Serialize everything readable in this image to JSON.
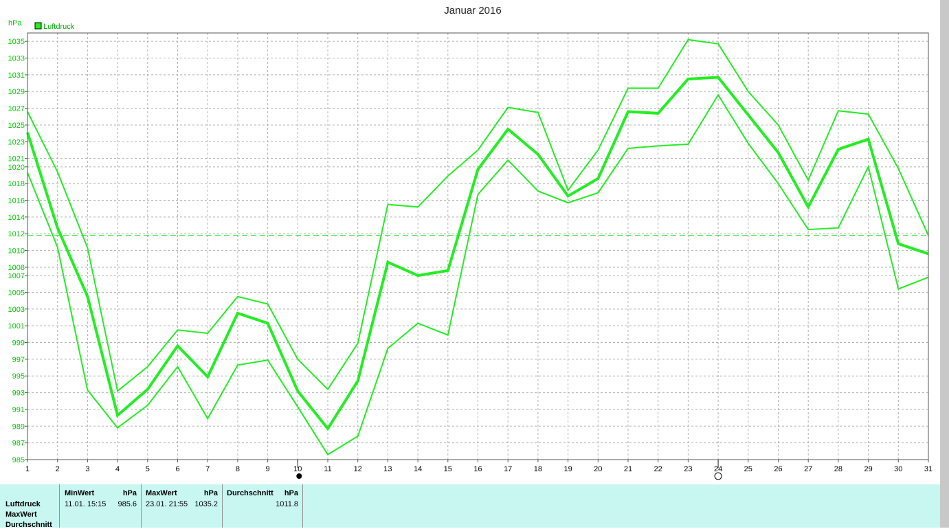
{
  "chart_data": {
    "type": "line",
    "title": "Januar 2016",
    "ylabel": "hPa",
    "legend": "Luftdruck",
    "ylim": [
      985,
      1036
    ],
    "x": [
      1,
      2,
      3,
      4,
      5,
      6,
      7,
      8,
      9,
      10,
      11,
      12,
      13,
      14,
      15,
      16,
      17,
      18,
      19,
      20,
      21,
      22,
      23,
      24,
      25,
      26,
      27,
      28,
      29,
      30,
      31
    ],
    "y_ticks": [
      985,
      987,
      989,
      991,
      993,
      995,
      997,
      999,
      1001,
      1003,
      1005,
      1007,
      1008,
      1010,
      1012,
      1014,
      1016,
      1018,
      1020,
      1021,
      1023,
      1025,
      1027,
      1029,
      1031,
      1033,
      1035
    ],
    "series": [
      {
        "values": [
          1026.6,
          1019.4,
          1010.3,
          993.2,
          996.1,
          1000.5,
          1000.1,
          1004.5,
          1003.6,
          997.0,
          993.4,
          998.9,
          1015.5,
          1015.2,
          1018.9,
          1022.0,
          1027.1,
          1026.5,
          1017.2,
          1022.0,
          1029.4,
          1029.4,
          1035.2,
          1034.7,
          1029.0,
          1025.0,
          1018.4,
          1026.7,
          1026.3,
          1019.8,
          1011.8
        ],
        "line_width": 2
      },
      {
        "values": [
          1024.1,
          1012.7,
          1004.5,
          990.3,
          993.4,
          998.6,
          994.9,
          1002.5,
          1001.3,
          993.2,
          988.7,
          994.4,
          1008.6,
          1007.0,
          1007.6,
          1019.7,
          1024.5,
          1021.5,
          1016.5,
          1018.6,
          1026.6,
          1026.4,
          1030.5,
          1030.7,
          1026.2,
          1021.7,
          1015.2,
          1022.1,
          1023.3,
          1010.8,
          1009.6
        ],
        "line_width": 4
      },
      {
        "values": [
          1019.3,
          1010.4,
          993.3,
          988.8,
          991.5,
          996.1,
          989.9,
          996.3,
          996.9,
          991.3,
          985.6,
          987.8,
          998.3,
          1001.3,
          999.9,
          1016.7,
          1020.8,
          1017.1,
          1015.7,
          1016.9,
          1022.2,
          1022.5,
          1022.7,
          1028.6,
          1022.8,
          1018.0,
          1012.5,
          1012.7,
          1020.0,
          1005.4,
          1006.8
        ],
        "line_width": 2
      }
    ],
    "average": 1011.8,
    "grid": true,
    "colors": {
      "line": "#22ee22",
      "grid": "#b0b0b0",
      "axis": "#555555"
    }
  },
  "markers": [
    {
      "day": 10,
      "symbol": "filled-circle"
    },
    {
      "day": 24,
      "symbol": "open-circle"
    }
  ],
  "summary": {
    "row_labels": [
      "Luftdruck",
      "MaxWert",
      "Durchschnitt"
    ],
    "min": {
      "header": "MinWert",
      "unit": "hPa",
      "datetime": "11.01.  15:15",
      "value": "985.6"
    },
    "max": {
      "header": "MaxWert",
      "unit": "hPa",
      "datetime": "23.01.  21:55",
      "value": "1035.2"
    },
    "avg": {
      "header": "Durchschnitt",
      "unit": "hPa",
      "value": "1011.8"
    }
  }
}
